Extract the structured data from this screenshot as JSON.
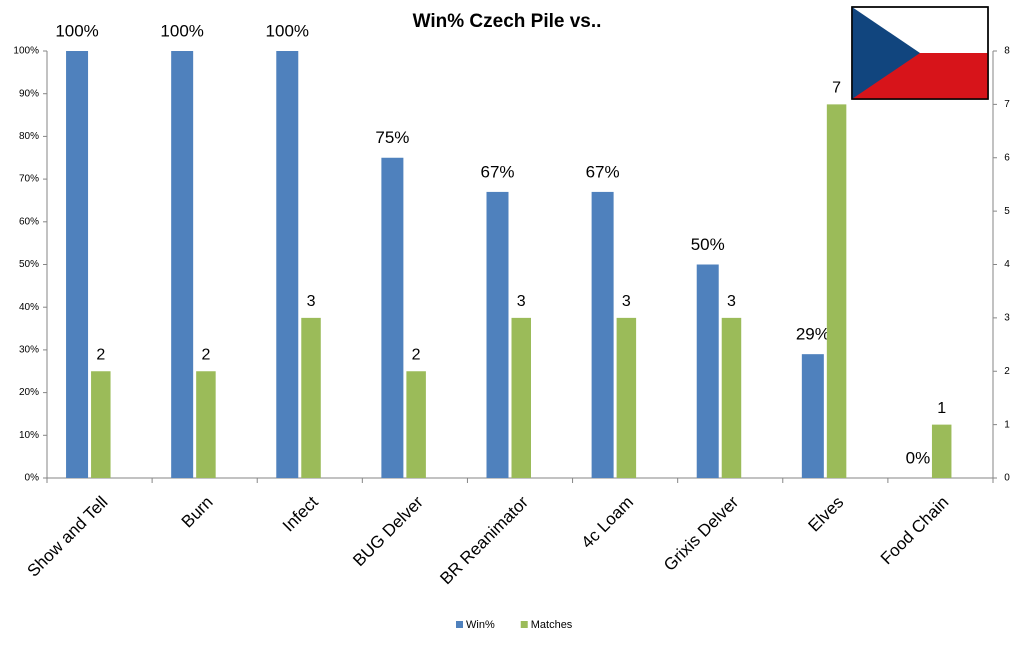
{
  "chart_data": {
    "type": "bar",
    "title": "Win% Czech Pile vs..",
    "categories": [
      "Show and Tell",
      "Burn",
      "Infect",
      "BUG Delver",
      "BR Reanimator",
      "4c Loam",
      "Grixis Delver",
      "Elves",
      "Food Chain"
    ],
    "series": [
      {
        "name": "Win%",
        "color": "#4f81bd",
        "values": [
          100,
          100,
          100,
          75,
          67,
          67,
          50,
          29,
          0
        ],
        "value_labels": [
          "100%",
          "100%",
          "100%",
          "75%",
          "67%",
          "67%",
          "50%",
          "29%",
          "0%"
        ]
      },
      {
        "name": "Matches",
        "color": "#9bbb59",
        "axis": "y2",
        "values": [
          2,
          2,
          3,
          2,
          3,
          3,
          3,
          7,
          1
        ]
      }
    ],
    "ylim": [
      0,
      100
    ],
    "yticks": [
      {
        "value": 0,
        "label": "0%"
      },
      {
        "value": 10,
        "label": "10%"
      },
      {
        "value": 20,
        "label": "20%"
      },
      {
        "value": 30,
        "label": "30%"
      },
      {
        "value": 40,
        "label": "40%"
      },
      {
        "value": 50,
        "label": "50%"
      },
      {
        "value": 60,
        "label": "60%"
      },
      {
        "value": 70,
        "label": "70%"
      },
      {
        "value": 80,
        "label": "80%"
      },
      {
        "value": 90,
        "label": "90%"
      },
      {
        "value": 100,
        "label": "100%"
      }
    ],
    "y2lim": [
      0,
      8
    ],
    "y2ticks": [
      0,
      1,
      2,
      3,
      4,
      5,
      6,
      7,
      8
    ]
  }
}
